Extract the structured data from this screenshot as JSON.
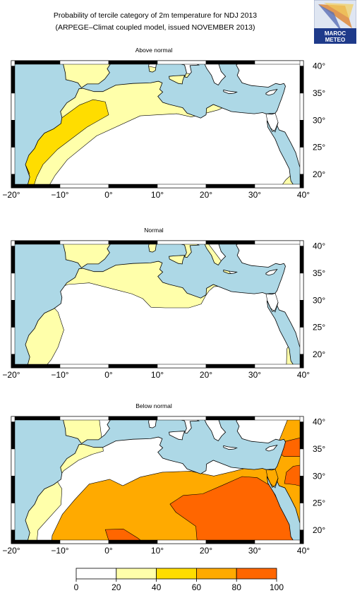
{
  "title_line1": "Probability of tercile category of 2m temperature for NDJ 2013",
  "title_line2": "(ARPEGE–Climat coupled model, issued NOVEMBER 2013)",
  "logo": {
    "line1": "MAROC",
    "line2": "METEO"
  },
  "panels": [
    {
      "title": "Above normal"
    },
    {
      "title": "Normal"
    },
    {
      "title": "Below normal"
    }
  ],
  "lon_ticks": [
    "−20°",
    "−10°",
    "0°",
    "10°",
    "20°",
    "30°",
    "40°"
  ],
  "lat_ticks": [
    "40°",
    "35°",
    "30°",
    "25°",
    "20°"
  ],
  "colorbar": {
    "ticks": [
      "0",
      "20",
      "40",
      "60",
      "80",
      "100"
    ],
    "colors": [
      "#ffffff",
      "#ffffaa",
      "#ffdd00",
      "#ffaa00",
      "#ff6600"
    ]
  },
  "colors": {
    "sea": "#add8e6",
    "land": "#ffffff",
    "coast": "#000000"
  }
}
